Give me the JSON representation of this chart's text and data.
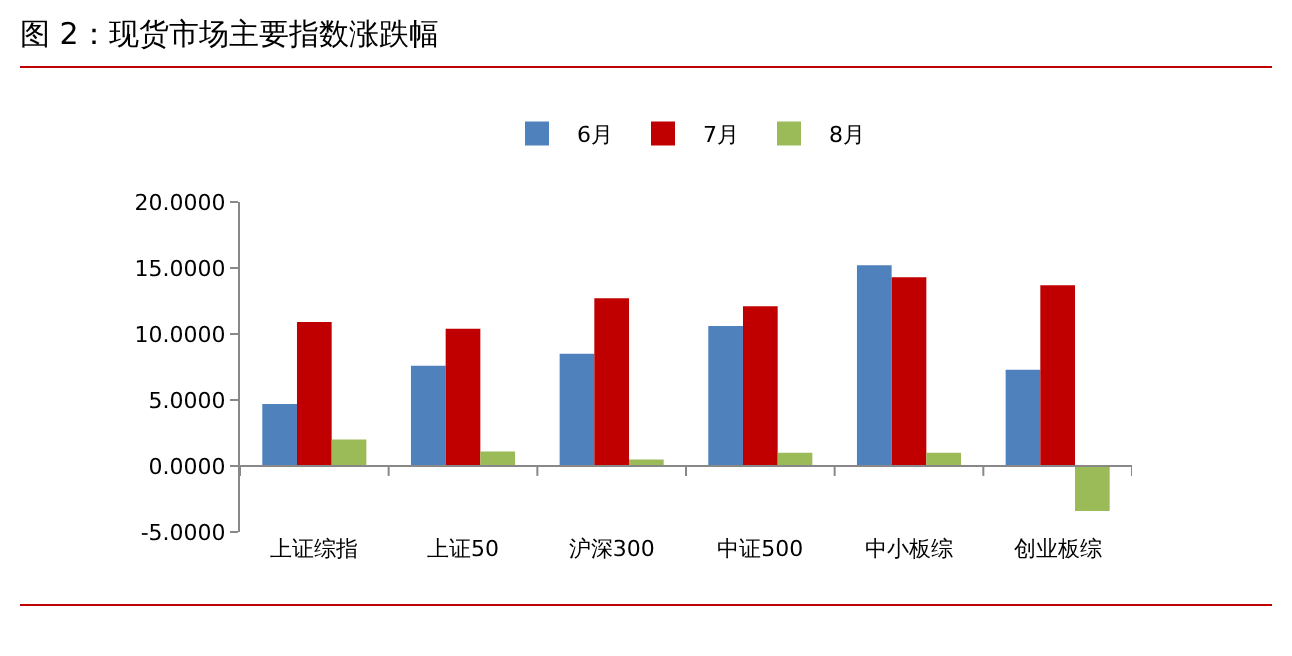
{
  "chart_data": {
    "type": "bar",
    "title": "图 2：现货市场主要指数涨跌幅",
    "categories": [
      "上证综指",
      "上证50",
      "沪深300",
      "中证500",
      "中小板综",
      "创业板综"
    ],
    "series": [
      {
        "name": "6月",
        "color": "#4f81bd",
        "values": [
          4.7,
          7.6,
          8.5,
          10.6,
          15.2,
          7.3
        ]
      },
      {
        "name": "7月",
        "color": "#c00000",
        "values": [
          10.9,
          10.4,
          12.7,
          12.1,
          14.3,
          13.7
        ]
      },
      {
        "name": "8月",
        "color": "#9bbb59",
        "values": [
          2.0,
          1.1,
          0.5,
          1.0,
          1.0,
          -3.4
        ]
      }
    ],
    "ylim": [
      -5,
      20
    ],
    "yticks": [
      {
        "value": -5,
        "label": "-5.0000"
      },
      {
        "value": 0,
        "label": "0.0000"
      },
      {
        "value": 5,
        "label": "5.0000"
      },
      {
        "value": 10,
        "label": "10.0000"
      },
      {
        "value": 15,
        "label": "15.0000"
      },
      {
        "value": 20,
        "label": "20.0000"
      }
    ],
    "legend": "top"
  }
}
